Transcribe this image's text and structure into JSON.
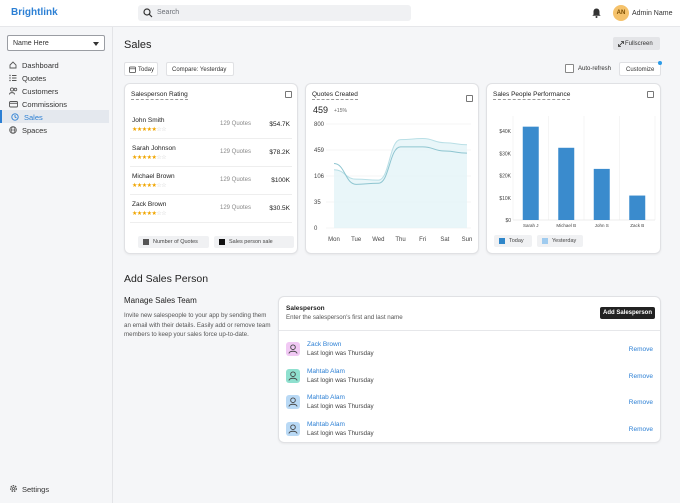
{
  "app": {
    "logo": "Brightlink",
    "search_placeholder": "Search",
    "user_initials": "AN",
    "user_name": "Admin Name"
  },
  "sidebar": {
    "selector": "Name Here",
    "items": [
      {
        "label": "Dashboard",
        "icon": "home-icon"
      },
      {
        "label": "Quotes",
        "icon": "list-icon"
      },
      {
        "label": "Customers",
        "icon": "users-icon"
      },
      {
        "label": "Commissions",
        "icon": "wallet-icon"
      },
      {
        "label": "Sales",
        "icon": "sales-icon",
        "active": true
      },
      {
        "label": "Spaces",
        "icon": "globe-icon"
      }
    ],
    "settings": "Settings"
  },
  "page": {
    "title": "Sales",
    "fullscreen": "Fullscreen",
    "today": "Today",
    "compare": "Compare: Yesterday",
    "auto_refresh": "Auto-refresh",
    "customize": "Customize"
  },
  "rating": {
    "title": "Salesperson Rating",
    "rows": [
      {
        "name": "John Smith",
        "quotes": "129 Quotes",
        "amount": "$54.7K",
        "stars": 5
      },
      {
        "name": "Sarah Johnson",
        "quotes": "129 Quotes",
        "amount": "$78.2K",
        "stars": 5
      },
      {
        "name": "Michael Brown",
        "quotes": "129 Quotes",
        "amount": "$100K",
        "stars": 5
      },
      {
        "name": "Zack Brown",
        "quotes": "129 Quotes",
        "amount": "$30.5K",
        "stars": 5
      }
    ],
    "legend": [
      "Number of Quotes",
      "Sales person sale"
    ]
  },
  "quotes": {
    "title": "Quotes Created",
    "value": "459",
    "change": "+15%"
  },
  "perf": {
    "title": "Sales People Performance",
    "legend": [
      "Today",
      "Yesterday"
    ]
  },
  "chart_data": [
    {
      "type": "line",
      "title": "Quotes Created",
      "categories": [
        "Mon",
        "Tue",
        "Wed",
        "Thu",
        "Fri",
        "Sat",
        "Sun"
      ],
      "yticks": [
        0,
        35,
        106,
        459,
        800
      ],
      "series": [
        {
          "values": [
            0.62,
            0.42,
            0.43,
            0.78,
            0.78,
            0.74,
            0.72
          ]
        },
        {
          "values": [
            0.56,
            0.47,
            0.46,
            0.85,
            0.86,
            0.82,
            0.8
          ]
        }
      ]
    },
    {
      "type": "bar",
      "title": "Sales People Performance",
      "categories": [
        "Sarah J",
        "Michael B",
        "John S",
        "Zack B"
      ],
      "values": [
        42,
        32.5,
        23,
        11
      ],
      "yticks": [
        "$0",
        "$10K",
        "$20K",
        "$30K",
        "$40K"
      ],
      "ylim": [
        0,
        45
      ],
      "series": [
        {
          "name": "Today",
          "values": [
            42,
            32.5,
            23,
            11
          ]
        }
      ]
    }
  ],
  "manage": {
    "section": "Add Sales Person",
    "title": "Manage Sales Team",
    "desc": "Invite new salespeople to your app by sending them an email with their details. Easily add or remove team members to keep your sales force up-to-date."
  },
  "salespanel": {
    "title": "Salesperson",
    "desc": "Enter the salesperson's first and last name",
    "add": "Add Salesperson",
    "remove": "Remove",
    "people": [
      {
        "name": "Zack Brown",
        "last": "Last login was Thursday",
        "color": "#f1c9f4"
      },
      {
        "name": "Mahtab Alam",
        "last": "Last login was Thursday",
        "color": "#8fe0cf"
      },
      {
        "name": "Mahtab Alam",
        "last": "Last login was Thursday",
        "color": "#b9d9f5"
      },
      {
        "name": "Mahtab Alam",
        "last": "Last login was Thursday",
        "color": "#b9d9f5"
      }
    ]
  }
}
